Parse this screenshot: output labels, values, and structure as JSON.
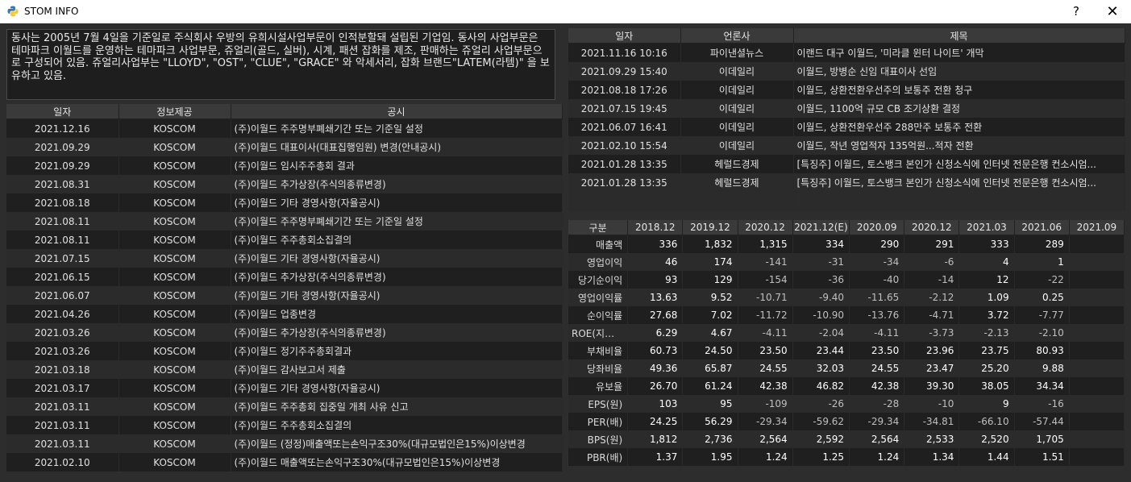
{
  "window": {
    "title": "STOM INFO",
    "help_label": "?",
    "close_label": "✕",
    "icon": "python-icon"
  },
  "description": "동사는 2005년 7월 4일을 기준일로 주식회사 우방의 유희시설사업부문이 인적분할돼 설립된 기업임. 동사의 사업부문은 테마파크 이월드를 운영하는 테마파크 사업부문, 쥬얼리(골드, 실버), 시계, 패션 잡화를 제조, 판매하는 쥬얼리 사업부문으로 구성되어 있음. 쥬얼리사업부는 \"LLOYD\", \"OST\", \"CLUE\", \"GRACE\" 와 악세서리, 잡화 브랜드\"LATEM(라템)\" 을 보유하고 있음.",
  "disclosures": {
    "headers": [
      "일자",
      "정보제공",
      "공시"
    ],
    "rows": [
      [
        "2021.12.16",
        "KOSCOM",
        "(주)이월드 주주명부폐쇄기간 또는 기준일 설정"
      ],
      [
        "2021.09.29",
        "KOSCOM",
        "(주)이월드 대표이사(대표집행임원) 변경(안내공시)"
      ],
      [
        "2021.09.29",
        "KOSCOM",
        "(주)이월드 임시주주총회 결과"
      ],
      [
        "2021.08.31",
        "KOSCOM",
        "(주)이월드 추가상장(주식의종류변경)"
      ],
      [
        "2021.08.18",
        "KOSCOM",
        "(주)이월드 기타 경영사항(자율공시)"
      ],
      [
        "2021.08.11",
        "KOSCOM",
        "(주)이월드 주주명부폐쇄기간 또는 기준일 설정"
      ],
      [
        "2021.08.11",
        "KOSCOM",
        "(주)이월드 주주총회소집결의"
      ],
      [
        "2021.07.15",
        "KOSCOM",
        "(주)이월드 기타 경영사항(자율공시)"
      ],
      [
        "2021.06.15",
        "KOSCOM",
        "(주)이월드 추가상장(주식의종류변경)"
      ],
      [
        "2021.06.07",
        "KOSCOM",
        "(주)이월드 기타 경영사항(자율공시)"
      ],
      [
        "2021.04.26",
        "KOSCOM",
        "(주)이월드 업종변경"
      ],
      [
        "2021.03.26",
        "KOSCOM",
        "(주)이월드 추가상장(주식의종류변경)"
      ],
      [
        "2021.03.26",
        "KOSCOM",
        "(주)이월드 정기주주총회결과"
      ],
      [
        "2021.03.18",
        "KOSCOM",
        "(주)이월드 감사보고서 제출"
      ],
      [
        "2021.03.17",
        "KOSCOM",
        "(주)이월드 기타 경영사항(자율공시)"
      ],
      [
        "2021.03.11",
        "KOSCOM",
        "(주)이월드 주주총회 집중일 개최 사유 신고"
      ],
      [
        "2021.03.11",
        "KOSCOM",
        "(주)이월드 주주총회소집결의"
      ],
      [
        "2021.03.11",
        "KOSCOM",
        "(주)이월드 (정정)매출액또는손익구조30%(대규모법인은15%)이상변경"
      ],
      [
        "2021.02.10",
        "KOSCOM",
        "(주)이월드 매출액또는손익구조30%(대규모법인은15%)이상변경"
      ]
    ]
  },
  "news": {
    "headers": [
      "일자",
      "언론사",
      "제목"
    ],
    "rows": [
      [
        "2021.11.16 10:16",
        "파이낸셜뉴스",
        "이랜드 대구 이월드, '미라클 윈터 나이트' 개막"
      ],
      [
        "2021.09.29 15:40",
        "이데일리",
        "이월드, 방병순 신임 대표이사 선임"
      ],
      [
        "2021.08.18 17:26",
        "이데일리",
        "이월드, 상환전환우선주의 보통주 전환 청구"
      ],
      [
        "2021.07.15 19:45",
        "이데일리",
        "이월드, 1100억 규모 CB 조기상환 결정"
      ],
      [
        "2021.06.07 16:41",
        "이데일리",
        "이월드, 상환전환우선주 288만주 보통주 전환"
      ],
      [
        "2021.02.10 15:54",
        "이데일리",
        "이월드, 작년 영업적자 135억원...적자 전환"
      ],
      [
        "2021.01.28 13:35",
        "헤럴드경제",
        "[특징주] 이월드, 토스뱅크 본인가 신청소식에 인터넷 전문은행 컨소시엄..."
      ],
      [
        "2021.01.28 13:35",
        "헤럴드경제",
        "[특징주] 이월드, 토스뱅크 본인가 신청소식에 인터넷 전문은행 컨소시엄..."
      ]
    ]
  },
  "financials": {
    "headers": [
      "구분",
      "2018.12",
      "2019.12",
      "2020.12",
      "2021.12(E)",
      "2020.09",
      "2020.12",
      "2021.03",
      "2021.06",
      "2021.09"
    ],
    "rows": [
      [
        "매출액",
        "336",
        "1,832",
        "1,315",
        "334",
        "290",
        "291",
        "333",
        "289",
        ""
      ],
      [
        "영업이익",
        "46",
        "174",
        "-141",
        "-31",
        "-34",
        "-6",
        "4",
        "1",
        ""
      ],
      [
        "당기순이익",
        "93",
        "129",
        "-154",
        "-36",
        "-40",
        "-14",
        "12",
        "-22",
        ""
      ],
      [
        "영업이익률",
        "13.63",
        "9.52",
        "-10.71",
        "-9.40",
        "-11.65",
        "-2.12",
        "1.09",
        "0.25",
        ""
      ],
      [
        "순이익률",
        "27.68",
        "7.02",
        "-11.72",
        "-10.90",
        "-13.76",
        "-4.71",
        "3.72",
        "-7.77",
        ""
      ],
      [
        "ROE(지배...",
        "6.29",
        "4.67",
        "-4.11",
        "-2.04",
        "-4.11",
        "-3.73",
        "-2.13",
        "-2.10",
        ""
      ],
      [
        "부채비율",
        "60.73",
        "24.50",
        "23.50",
        "23.44",
        "23.50",
        "23.96",
        "23.75",
        "80.93",
        ""
      ],
      [
        "당좌비율",
        "49.36",
        "65.87",
        "24.55",
        "32.03",
        "24.55",
        "23.47",
        "25.20",
        "9.88",
        ""
      ],
      [
        "유보율",
        "26.70",
        "61.24",
        "42.38",
        "46.82",
        "42.38",
        "39.30",
        "38.05",
        "34.34",
        ""
      ],
      [
        "EPS(원)",
        "103",
        "95",
        "-109",
        "-26",
        "-28",
        "-10",
        "9",
        "-16",
        ""
      ],
      [
        "PER(배)",
        "24.25",
        "56.29",
        "-29.34",
        "-59.62",
        "-29.34",
        "-34.81",
        "-66.10",
        "-57.44",
        ""
      ],
      [
        "BPS(원)",
        "1,812",
        "2,736",
        "2,564",
        "2,592",
        "2,564",
        "2,533",
        "2,520",
        "1,705",
        ""
      ],
      [
        "PBR(배)",
        "1.37",
        "1.95",
        "1.24",
        "1.25",
        "1.24",
        "1.34",
        "1.44",
        "1.51",
        ""
      ]
    ]
  }
}
